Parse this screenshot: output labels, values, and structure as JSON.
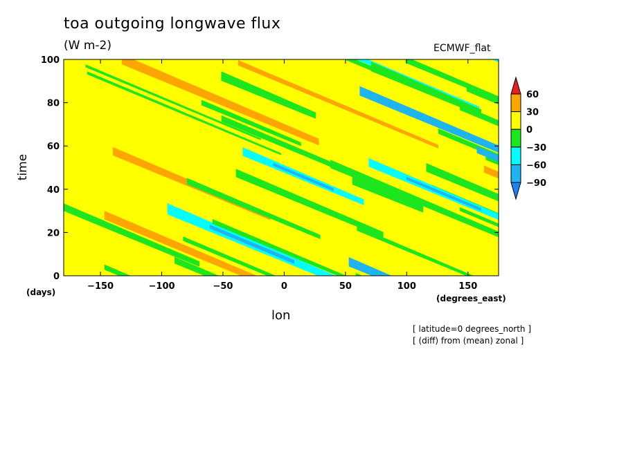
{
  "chart_data": {
    "type": "heatmap",
    "title": "toa outgoing longwave flux",
    "subtitle": "(W m-2)",
    "source_label": "ECMWF_flat",
    "xlabel": "lon",
    "x_units": "(degrees_east)",
    "ylabel": "time",
    "y_units": "(days)",
    "xlim": [
      -180,
      175
    ],
    "ylim": [
      0,
      100
    ],
    "x_ticks": [
      -150,
      -100,
      -50,
      0,
      50,
      100,
      150
    ],
    "y_ticks": [
      0,
      20,
      40,
      60,
      80,
      100
    ],
    "colorbar": {
      "levels": [
        -90,
        -60,
        -30,
        0,
        30,
        60
      ],
      "colors": [
        "#1e82f0",
        "#1eb4f0",
        "#00ffff",
        "#1ee61e",
        "#ffff00",
        "#ffa500",
        "#e61e1e"
      ],
      "extend": "both"
    },
    "pattern_description": "westward-propagating anomaly bands, most values between -30 and 30",
    "annotations": [
      "[ latitude=0 degrees_north ]",
      "[ (diff) from (mean) zonal ]"
    ],
    "grid": false
  }
}
